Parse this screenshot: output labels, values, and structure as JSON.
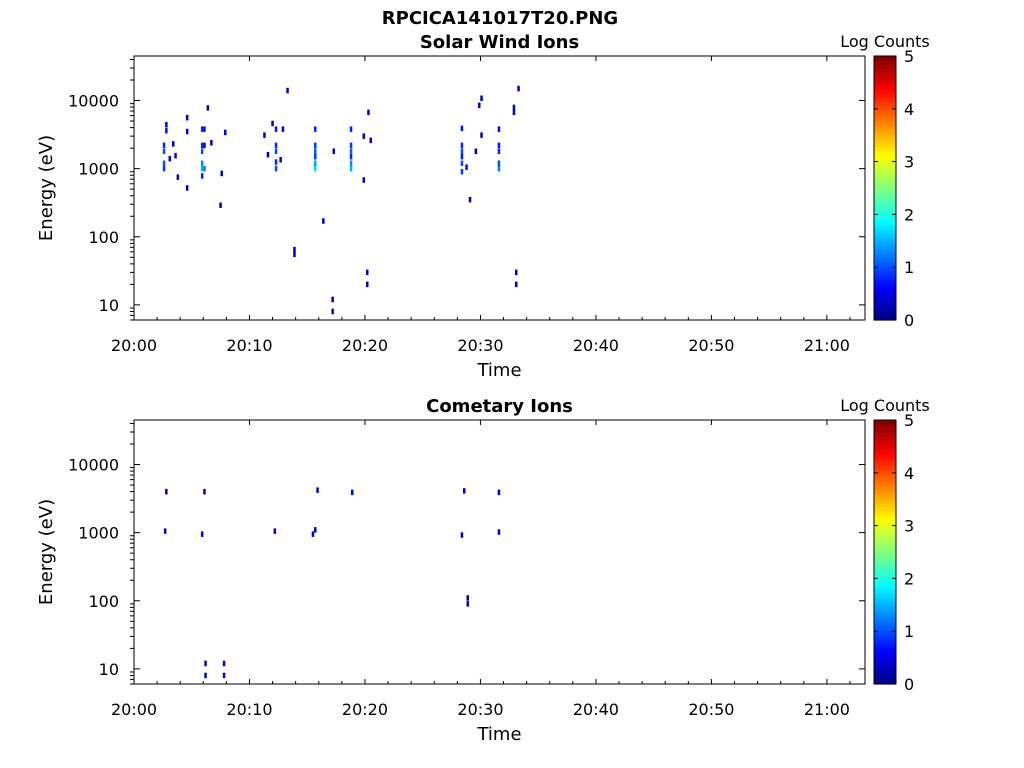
{
  "figure": {
    "suptitle": "RPCICA141017T20.PNG"
  },
  "chart_data": [
    {
      "type": "heatmap",
      "title": "Solar Wind Ions",
      "xlabel": "Time",
      "ylabel": "Energy (eV)",
      "colorbar_label": "Log Counts",
      "colorbar_ticks": [
        "0",
        "1",
        "2",
        "3",
        "4",
        "5"
      ],
      "colorbar_range": [
        0,
        5
      ],
      "colormap": "jet",
      "x_ticks": [
        "20:00",
        "20:10",
        "20:20",
        "20:30",
        "20:40",
        "20:50",
        "21:00"
      ],
      "x_range_minutes": [
        0,
        63.3
      ],
      "y_scale": "log",
      "y_ticks": [
        "10",
        "100",
        "1000",
        "10000"
      ],
      "y_range": [
        6,
        45000
      ],
      "cells": [
        {
          "t": 2.6,
          "e": 1000,
          "v": 0.9
        },
        {
          "t": 2.6,
          "e": 1200,
          "v": 1.0
        },
        {
          "t": 2.6,
          "e": 1800,
          "v": 1.0
        },
        {
          "t": 2.6,
          "e": 2200,
          "v": 0.8
        },
        {
          "t": 2.8,
          "e": 3600,
          "v": 0.7
        },
        {
          "t": 2.8,
          "e": 4400,
          "v": 0.6
        },
        {
          "t": 3.1,
          "e": 1400,
          "v": 0.5
        },
        {
          "t": 3.4,
          "e": 2300,
          "v": 0.4
        },
        {
          "t": 3.6,
          "e": 1550,
          "v": 0.4
        },
        {
          "t": 3.8,
          "e": 750,
          "v": 0.3
        },
        {
          "t": 4.6,
          "e": 520,
          "v": 0.3
        },
        {
          "t": 4.6,
          "e": 3500,
          "v": 0.3
        },
        {
          "t": 4.6,
          "e": 5600,
          "v": 0.3
        },
        {
          "t": 5.9,
          "e": 1000,
          "v": 1.5
        },
        {
          "t": 5.9,
          "e": 1200,
          "v": 1.3
        },
        {
          "t": 5.9,
          "e": 780,
          "v": 0.8
        },
        {
          "t": 5.9,
          "e": 1800,
          "v": 1.0
        },
        {
          "t": 5.9,
          "e": 2200,
          "v": 0.8
        },
        {
          "t": 5.9,
          "e": 3800,
          "v": 0.8
        },
        {
          "t": 6.1,
          "e": 1000,
          "v": 1.2
        },
        {
          "t": 6.1,
          "e": 2200,
          "v": 0.6
        },
        {
          "t": 6.1,
          "e": 3800,
          "v": 0.7
        },
        {
          "t": 6.4,
          "e": 7800,
          "v": 0.3
        },
        {
          "t": 6.7,
          "e": 2400,
          "v": 0.3
        },
        {
          "t": 7.5,
          "e": 290,
          "v": 0.3
        },
        {
          "t": 7.6,
          "e": 850,
          "v": 0.3
        },
        {
          "t": 7.9,
          "e": 3400,
          "v": 0.3
        },
        {
          "t": 11.3,
          "e": 3100,
          "v": 0.3
        },
        {
          "t": 11.6,
          "e": 1600,
          "v": 0.3
        },
        {
          "t": 12.0,
          "e": 4600,
          "v": 0.3
        },
        {
          "t": 12.3,
          "e": 1000,
          "v": 1.0
        },
        {
          "t": 12.3,
          "e": 1250,
          "v": 0.8
        },
        {
          "t": 12.3,
          "e": 1800,
          "v": 1.0
        },
        {
          "t": 12.3,
          "e": 2200,
          "v": 0.8
        },
        {
          "t": 12.3,
          "e": 3800,
          "v": 0.7
        },
        {
          "t": 12.7,
          "e": 1350,
          "v": 0.3
        },
        {
          "t": 12.9,
          "e": 3800,
          "v": 0.3
        },
        {
          "t": 13.3,
          "e": 14000,
          "v": 0.3
        },
        {
          "t": 13.9,
          "e": 55,
          "v": 0.3
        },
        {
          "t": 13.9,
          "e": 65,
          "v": 0.3
        },
        {
          "t": 15.7,
          "e": 1000,
          "v": 1.7
        },
        {
          "t": 15.7,
          "e": 1200,
          "v": 1.4
        },
        {
          "t": 15.7,
          "e": 1500,
          "v": 0.9
        },
        {
          "t": 15.7,
          "e": 1800,
          "v": 1.1
        },
        {
          "t": 15.7,
          "e": 2200,
          "v": 0.9
        },
        {
          "t": 15.7,
          "e": 3800,
          "v": 0.8
        },
        {
          "t": 16.4,
          "e": 170,
          "v": 0.3
        },
        {
          "t": 17.2,
          "e": 8,
          "v": 0.3
        },
        {
          "t": 17.2,
          "e": 12,
          "v": 0.3
        },
        {
          "t": 17.3,
          "e": 1800,
          "v": 0.3
        },
        {
          "t": 18.8,
          "e": 1000,
          "v": 1.5
        },
        {
          "t": 18.8,
          "e": 1200,
          "v": 1.3
        },
        {
          "t": 18.8,
          "e": 1500,
          "v": 0.8
        },
        {
          "t": 18.8,
          "e": 1800,
          "v": 1.1
        },
        {
          "t": 18.8,
          "e": 2200,
          "v": 0.9
        },
        {
          "t": 18.8,
          "e": 3800,
          "v": 0.8
        },
        {
          "t": 19.9,
          "e": 680,
          "v": 0.3
        },
        {
          "t": 19.9,
          "e": 3000,
          "v": 0.3
        },
        {
          "t": 20.2,
          "e": 20,
          "v": 0.3
        },
        {
          "t": 20.2,
          "e": 30,
          "v": 0.3
        },
        {
          "t": 20.3,
          "e": 6700,
          "v": 0.3
        },
        {
          "t": 20.5,
          "e": 2600,
          "v": 0.3
        },
        {
          "t": 28.4,
          "e": 900,
          "v": 0.9
        },
        {
          "t": 28.4,
          "e": 1200,
          "v": 1.0
        },
        {
          "t": 28.4,
          "e": 1500,
          "v": 0.7
        },
        {
          "t": 28.4,
          "e": 1800,
          "v": 1.0
        },
        {
          "t": 28.4,
          "e": 2200,
          "v": 0.8
        },
        {
          "t": 28.4,
          "e": 3900,
          "v": 0.7
        },
        {
          "t": 28.8,
          "e": 1050,
          "v": 0.6
        },
        {
          "t": 29.1,
          "e": 350,
          "v": 0.3
        },
        {
          "t": 29.6,
          "e": 1800,
          "v": 0.3
        },
        {
          "t": 29.9,
          "e": 8500,
          "v": 0.3
        },
        {
          "t": 30.1,
          "e": 10800,
          "v": 0.3
        },
        {
          "t": 30.1,
          "e": 3100,
          "v": 0.3
        },
        {
          "t": 31.6,
          "e": 1000,
          "v": 1.2
        },
        {
          "t": 31.6,
          "e": 1200,
          "v": 1.0
        },
        {
          "t": 31.6,
          "e": 1800,
          "v": 0.8
        },
        {
          "t": 31.6,
          "e": 2200,
          "v": 0.7
        },
        {
          "t": 31.6,
          "e": 3800,
          "v": 0.6
        },
        {
          "t": 32.9,
          "e": 6700,
          "v": 0.3
        },
        {
          "t": 32.9,
          "e": 7900,
          "v": 0.3
        },
        {
          "t": 33.1,
          "e": 20,
          "v": 0.3
        },
        {
          "t": 33.1,
          "e": 30,
          "v": 0.3
        },
        {
          "t": 33.3,
          "e": 15000,
          "v": 0.3
        }
      ]
    },
    {
      "type": "heatmap",
      "title": "Cometary Ions",
      "xlabel": "Time",
      "ylabel": "Energy (eV)",
      "colorbar_label": "Log Counts",
      "colorbar_ticks": [
        "0",
        "1",
        "2",
        "3",
        "4",
        "5"
      ],
      "colorbar_range": [
        0,
        5
      ],
      "colormap": "jet",
      "x_ticks": [
        "20:00",
        "20:10",
        "20:20",
        "20:30",
        "20:40",
        "20:50",
        "21:00"
      ],
      "x_range_minutes": [
        0,
        63.3
      ],
      "y_scale": "log",
      "y_ticks": [
        "10",
        "100",
        "1000",
        "10000"
      ],
      "y_range": [
        6,
        45000
      ],
      "cells": [
        {
          "t": 2.7,
          "e": 1050,
          "v": 0.4
        },
        {
          "t": 2.8,
          "e": 4000,
          "v": 0.3
        },
        {
          "t": 5.9,
          "e": 950,
          "v": 0.4
        },
        {
          "t": 6.1,
          "e": 4000,
          "v": 0.3
        },
        {
          "t": 6.2,
          "e": 8,
          "v": 0.3
        },
        {
          "t": 6.2,
          "e": 12,
          "v": 0.3
        },
        {
          "t": 7.8,
          "e": 8,
          "v": 0.4
        },
        {
          "t": 7.8,
          "e": 12,
          "v": 0.4
        },
        {
          "t": 12.2,
          "e": 1050,
          "v": 0.3
        },
        {
          "t": 15.5,
          "e": 950,
          "v": 0.4
        },
        {
          "t": 15.7,
          "e": 1100,
          "v": 0.4
        },
        {
          "t": 15.9,
          "e": 4200,
          "v": 0.4
        },
        {
          "t": 18.9,
          "e": 3900,
          "v": 0.5
        },
        {
          "t": 28.4,
          "e": 920,
          "v": 0.3
        },
        {
          "t": 28.6,
          "e": 4100,
          "v": 0.4
        },
        {
          "t": 28.9,
          "e": 90,
          "v": 0.3
        },
        {
          "t": 28.9,
          "e": 110,
          "v": 0.3
        },
        {
          "t": 31.6,
          "e": 1020,
          "v": 0.4
        },
        {
          "t": 31.6,
          "e": 3900,
          "v": 0.3
        }
      ]
    }
  ]
}
